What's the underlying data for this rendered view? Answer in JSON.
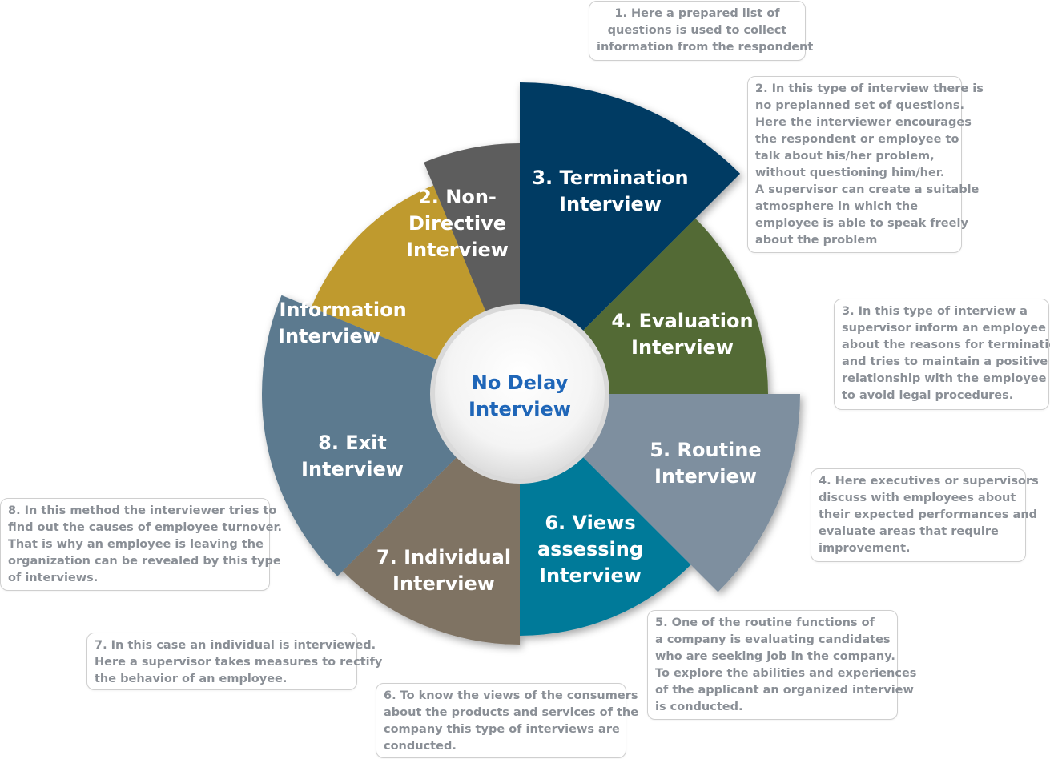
{
  "center": {
    "line1": "No Delay",
    "line2": "Interview"
  },
  "segments": [
    {
      "id": "info",
      "color": "#bf9a2d",
      "lines": [
        "1. Information",
        "Interview"
      ]
    },
    {
      "id": "nondir",
      "color": "#5d5d5d",
      "lines": [
        "2. Non-",
        "Directive",
        "Interview"
      ]
    },
    {
      "id": "term",
      "color": "#003a63",
      "lines": [
        "3. Termination",
        "Interview"
      ]
    },
    {
      "id": "eval",
      "color": "#526b35",
      "lines": [
        "4. Evaluation",
        "Interview"
      ]
    },
    {
      "id": "routine",
      "color": "#7e8f9f",
      "lines": [
        "5. Routine",
        "Interview"
      ]
    },
    {
      "id": "views",
      "color": "#027a99",
      "lines": [
        "6. Views",
        "assessing",
        "Interview"
      ]
    },
    {
      "id": "individual",
      "color": "#7f7364",
      "lines": [
        "7. Individual",
        "Interview"
      ]
    },
    {
      "id": "exit",
      "color": "#5b7a8f",
      "lines": [
        "8. Exit",
        "Interview"
      ]
    }
  ],
  "notes": [
    {
      "id": "1",
      "lines": [
        "1. Here a prepared list of",
        "questions is used to collect",
        "information from the respondent"
      ]
    },
    {
      "id": "2",
      "lines": [
        "2. In this type of interview there is",
        "no preplanned set of questions.",
        "Here the interviewer encourages",
        "the respondent or employee to",
        "talk about his/her problem,",
        "without questioning him/her.",
        "A supervisor can create a suitable",
        "atmosphere in which the",
        "employee is able to speak freely",
        "about the problem"
      ]
    },
    {
      "id": "3",
      "lines": [
        "3. In this type of interview a",
        "supervisor inform an employee",
        "about the reasons for termination",
        "and tries to maintain a positive",
        "relationship with the employee",
        "to avoid legal procedures."
      ]
    },
    {
      "id": "4",
      "lines": [
        "4. Here executives or supervisors",
        "discuss with employees about",
        "their expected performances and",
        "evaluate areas that require",
        "improvement."
      ]
    },
    {
      "id": "5",
      "lines": [
        "5. One of the routine functions of",
        "a company is evaluating candidates",
        "who are seeking job in the company.",
        "To explore the abilities and experiences",
        "of the applicant an organized interview",
        "is conducted."
      ]
    },
    {
      "id": "6",
      "lines": [
        "6. To know the views of the consumers",
        "about the products and services of the",
        "company this type of interviews are",
        "conducted."
      ]
    },
    {
      "id": "7",
      "lines": [
        "7. In this case an individual is interviewed.",
        "Here a supervisor takes measures to rectify",
        "the behavior of an employee."
      ]
    },
    {
      "id": "8",
      "lines": [
        "8. In this method the interviewer tries to",
        "find out the causes of employee turnover.",
        "That is why an employee is leaving the",
        "organization can be revealed by this type",
        "of interviews."
      ]
    }
  ]
}
